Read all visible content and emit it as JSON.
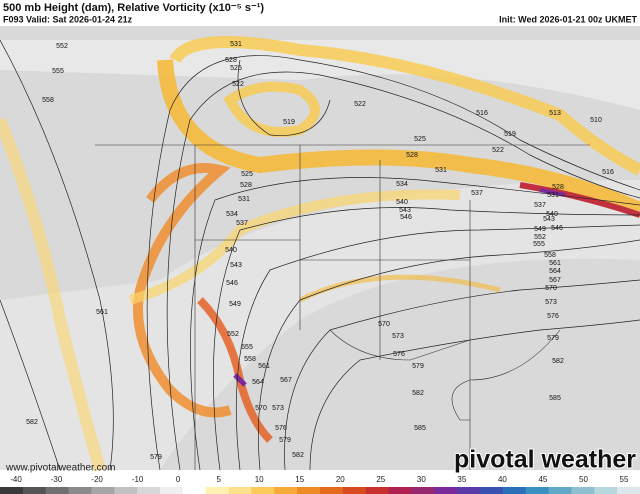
{
  "header": {
    "title": "500 mb Height (dam), Relative Vorticity (x10⁻⁵ s⁻¹)",
    "valid": "F093 Valid: Sat 2026-01-24 21z",
    "init": "Init: Wed 2026-01-21 00z UKMET"
  },
  "contour_labels": [
    552,
    555,
    558,
    531,
    528,
    525,
    522,
    519,
    522,
    525,
    528,
    531,
    534,
    537,
    540,
    543,
    546,
    516,
    519,
    522,
    513,
    510,
    516,
    525,
    528,
    531,
    534,
    537,
    540,
    543,
    546,
    549,
    552,
    555,
    558,
    561,
    564,
    567,
    570,
    573,
    576,
    579,
    582,
    561,
    582,
    579,
    570,
    573,
    576,
    579,
    582,
    585,
    585,
    582,
    579,
    576,
    573,
    570,
    567,
    564,
    561,
    558,
    555,
    552,
    549,
    546,
    543,
    540,
    537,
    528,
    531
  ],
  "watermark": {
    "url": "www.pivotalweather.com",
    "brand": "pivotal weather"
  },
  "colorbar": {
    "ticks": [
      -40,
      -30,
      -20,
      -10,
      0,
      5,
      10,
      15,
      20,
      25,
      30,
      35,
      40,
      45,
      50,
      55
    ]
  }
}
